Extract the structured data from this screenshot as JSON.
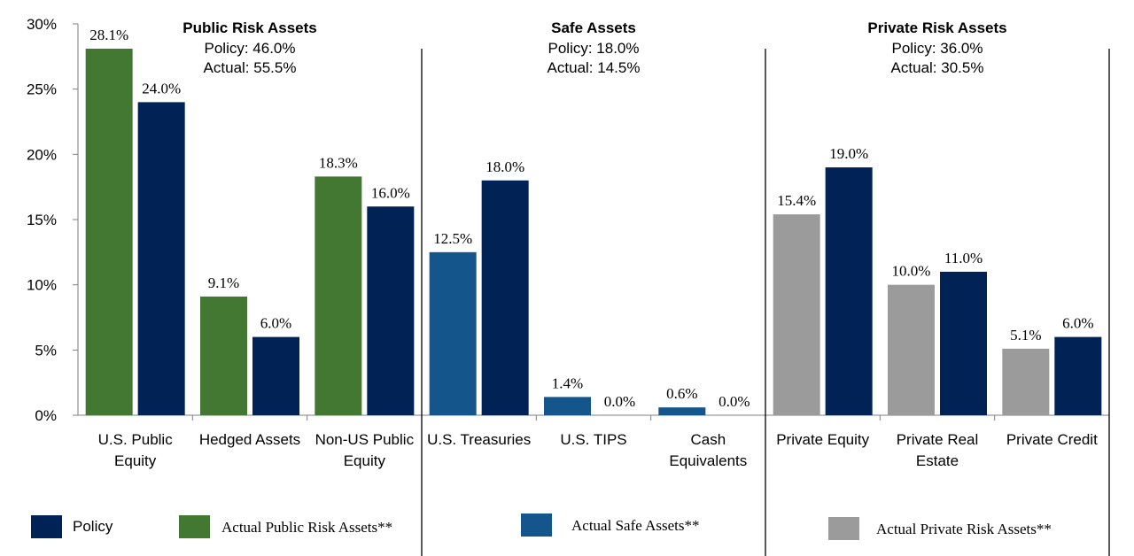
{
  "chart_data": {
    "type": "bar",
    "y_axis": {
      "ylim": [
        0,
        30
      ],
      "ticks": [
        0,
        5,
        10,
        15,
        20,
        25,
        30
      ],
      "tick_suffix": "%"
    },
    "grid": false,
    "groups": [
      {
        "title": "Public Risk Assets",
        "policy_line": "Policy:  46.0%",
        "actual_line": "Actual:  55.5%",
        "categories": [
          {
            "label_lines": [
              "U.S. Public",
              "Equity"
            ],
            "actual": 28.1,
            "policy": 24.0,
            "actual_label": "28.1%",
            "policy_label": "24.0%"
          },
          {
            "label_lines": [
              "Hedged Assets"
            ],
            "actual": 9.1,
            "policy": 6.0,
            "actual_label": "9.1%",
            "policy_label": "6.0%"
          },
          {
            "label_lines": [
              "Non-US Public",
              "Equity"
            ],
            "actual": 18.3,
            "policy": 16.0,
            "actual_label": "18.3%",
            "policy_label": "16.0%"
          }
        ]
      },
      {
        "title": "Safe Assets",
        "policy_line": "Policy:  18.0%",
        "actual_line": "Actual:  14.5%",
        "categories": [
          {
            "label_lines": [
              "U.S. Treasuries"
            ],
            "actual": 12.5,
            "policy": 18.0,
            "actual_label": "12.5%",
            "policy_label": "18.0%"
          },
          {
            "label_lines": [
              "U.S. TIPS"
            ],
            "actual": 1.4,
            "policy": 0.0,
            "actual_label": "1.4%",
            "policy_label": "0.0%"
          },
          {
            "label_lines": [
              "Cash",
              "Equivalents"
            ],
            "actual": 0.6,
            "policy": 0.0,
            "actual_label": "0.6%",
            "policy_label": "0.0%"
          }
        ]
      },
      {
        "title": "Private Risk Assets",
        "policy_line": "Policy:  36.0%",
        "actual_line": "Actual:  30.5%",
        "categories": [
          {
            "label_lines": [
              "Private Equity"
            ],
            "actual": 15.4,
            "policy": 19.0,
            "actual_label": "15.4%",
            "policy_label": "19.0%"
          },
          {
            "label_lines": [
              "Private Real",
              "Estate"
            ],
            "actual": 10.0,
            "policy": 11.0,
            "actual_label": "10.0%",
            "policy_label": "11.0%"
          },
          {
            "label_lines": [
              "Private Credit"
            ],
            "actual": 5.1,
            "policy": 6.0,
            "actual_label": "5.1%",
            "policy_label": "6.0%"
          }
        ]
      }
    ],
    "series": [
      {
        "key": "policy",
        "name": "Policy",
        "color": "#002255"
      },
      {
        "key": "actual_public",
        "name": "Actual Public Risk Assets**",
        "color": "#427832"
      },
      {
        "key": "actual_safe",
        "name": "Actual Safe Assets**",
        "color": "#14568C"
      },
      {
        "key": "actual_private",
        "name": "Actual Private Risk Assets**",
        "color": "#9B9B9B"
      }
    ],
    "legend_position": "bottom"
  }
}
